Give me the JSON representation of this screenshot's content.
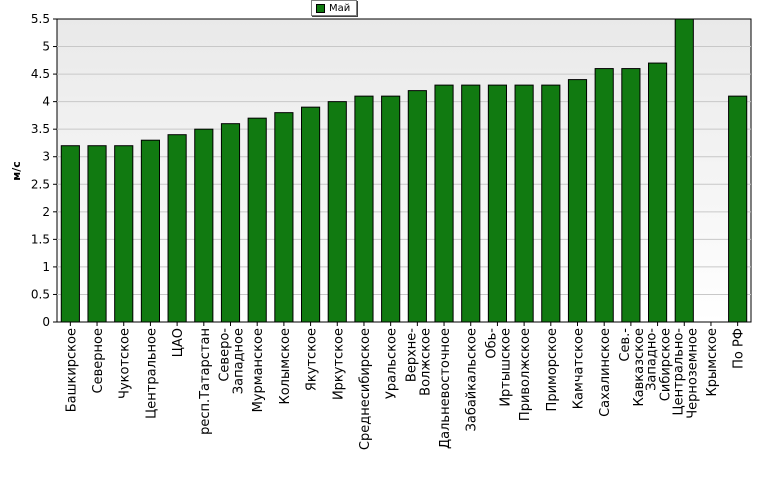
{
  "chart_data": {
    "type": "bar",
    "ylabel": "м/с",
    "ylim": [
      0,
      5.5
    ],
    "yticks": [
      "0",
      "0.5",
      "1",
      "1.5",
      "2",
      "2.5",
      "3",
      "3.5",
      "4",
      "4.5",
      "5",
      "5.5"
    ],
    "grid": true,
    "legend_position": "top-center",
    "series": [
      {
        "name": "Май",
        "color": "#117a11"
      }
    ],
    "categories": [
      "Башкирское",
      "Северное",
      "Чукотское",
      "Центральное",
      "ЦАО",
      "респ.Татарстан",
      "Северо-Западное",
      "Мурманское",
      "Колымское",
      "Якутское",
      "Иркутское",
      "Среднесибирское",
      "Уральское",
      "Верхне-Волжское",
      "Дальневосточное",
      "Забайкальское",
      "Обь-Иртышское",
      "Приволжское",
      "Приморское",
      "Камчатское",
      "Сахалинское",
      "Сев.-Кавказское",
      "Западно-Сибирское",
      "Центрально-Черноземное",
      "Крымское",
      "По РФ"
    ],
    "values": [
      3.2,
      3.2,
      3.2,
      3.3,
      3.4,
      3.5,
      3.6,
      3.7,
      3.8,
      3.9,
      4.0,
      4.1,
      4.1,
      4.2,
      4.3,
      4.3,
      4.3,
      4.3,
      4.3,
      4.4,
      4.6,
      4.6,
      4.7,
      5.5,
      null,
      4.1
    ]
  }
}
